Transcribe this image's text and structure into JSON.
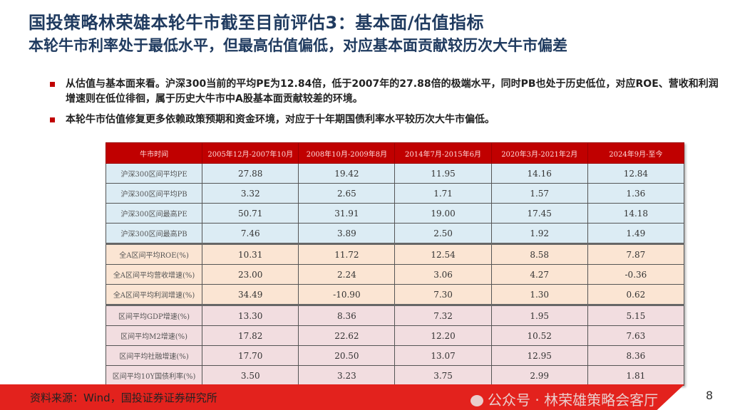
{
  "title": "国投策略林荣雄本轮牛市截至目前评估3：基本面/估值指标",
  "subtitle": "本轮牛市利率处于最低水平，但最高估值偏低，对应基本面贡献较历次大牛市偏差",
  "bullets": [
    "从估值与基本面来看。沪深300当前的平均PE为12.84倍，低于2007年的27.88倍的极端水平，同时PB也处于历史低位，对应ROE、营收和利润增速则在低位徘徊，属于历史大牛市中A股基本面贡献较差的环境。",
    "本轮牛市估值修复更多依赖政策预期和资金环境，对应于十年期国债利率水平较历次大牛市偏低。"
  ],
  "table": {
    "headers": [
      "牛市时间",
      "2005年12月-2007年10月",
      "2008年10月-2009年8月",
      "2014年7月-2015年6月",
      "2020年3月-2021年2月",
      "2024年9月-至今"
    ],
    "rows": [
      {
        "label": "沪深300区间平均PE",
        "values": [
          "27.88",
          "19.42",
          "11.95",
          "14.16",
          "12.84"
        ]
      },
      {
        "label": "沪深300区间平均PB",
        "values": [
          "3.32",
          "2.65",
          "1.71",
          "1.57",
          "1.36"
        ]
      },
      {
        "label": "沪深300区间最高PE",
        "values": [
          "50.71",
          "31.91",
          "19.00",
          "17.45",
          "14.18"
        ]
      },
      {
        "label": "沪深300区间最高PB",
        "values": [
          "7.46",
          "3.89",
          "2.50",
          "1.92",
          "1.49"
        ]
      },
      {
        "label": "全A区间平均ROE(%)",
        "values": [
          "10.31",
          "11.72",
          "12.54",
          "8.58",
          "7.87"
        ]
      },
      {
        "label": "全A区间平均营收增速(%)",
        "values": [
          "23.00",
          "2.24",
          "3.06",
          "4.27",
          "-0.36"
        ]
      },
      {
        "label": "全A区间平均利润增速(%)",
        "values": [
          "34.49",
          "-10.90",
          "7.30",
          "1.30",
          "0.62"
        ]
      },
      {
        "label": "区间平均GDP增速(%)",
        "values": [
          "13.30",
          "8.36",
          "7.32",
          "1.95",
          "5.15"
        ]
      },
      {
        "label": "区间平均M2增速(%)",
        "values": [
          "17.82",
          "22.62",
          "12.20",
          "10.52",
          "7.63"
        ]
      },
      {
        "label": "区间平均社融增速(%)",
        "values": [
          "17.70",
          "20.50",
          "13.07",
          "12.95",
          "8.36"
        ]
      },
      {
        "label": "区间平均10Y国债利率(%)",
        "values": [
          "3.50",
          "3.23",
          "3.75",
          "2.99",
          "1.81"
        ]
      }
    ]
  },
  "watermark": "公众号 · 林荣雄策略会客厅",
  "footer": {
    "source": "资料来源：Wind，国投证券证券研究所",
    "page": "8"
  },
  "colors": {
    "accent": "#c00000",
    "title": "#1f3a5f",
    "footer": "#e3221d"
  }
}
